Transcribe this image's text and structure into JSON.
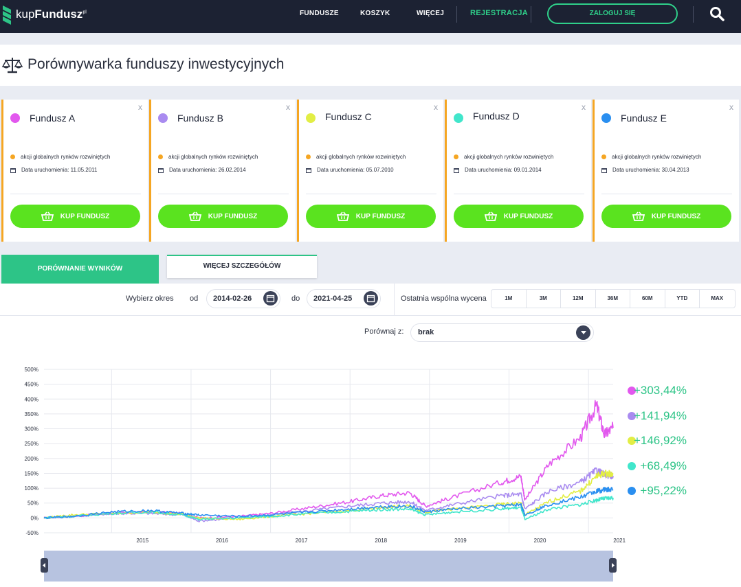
{
  "brand": {
    "name_light": "kup",
    "name_bold": "Fundusz",
    "suffix": "pl"
  },
  "nav": {
    "items": [
      "FUNDUSZE",
      "KOSZYK",
      "WIĘCEJ"
    ],
    "register": "REJESTRACJA",
    "login": "ZALOGUJ SIĘ"
  },
  "page": {
    "title": "Porównywarka funduszy inwestycyjnych"
  },
  "cards": [
    {
      "name": "Fundusz A",
      "color": "#e258ee",
      "category": "akcji globalnych rynków rozwiniętych",
      "date": "Data uruchomienia: 11.05.2011",
      "buy": "KUP FUNDUSZ"
    },
    {
      "name": "Fundusz B",
      "color": "#a98bf0",
      "category": "akcji globalnych rynków rozwiniętych",
      "date": "Data uruchomienia: 26.02.2014",
      "buy": "KUP FUNDUSZ"
    },
    {
      "name": "Fundusz C",
      "color": "#e2ee45",
      "category": "akcji globalnych rynków rozwiniętych",
      "date": "Data uruchomienia: 05.07.2010",
      "buy": "KUP FUNDUSZ"
    },
    {
      "name": "Fundusz D",
      "color": "#41e6cb",
      "category": "akcji globalnych rynków rozwiniętych",
      "date": "Data uruchomienia: 09.01.2014",
      "buy": "KUP FUNDUSZ"
    },
    {
      "name": "Fundusz E",
      "color": "#2a8ff0",
      "category": "akcji globalnych rynków rozwiniętych",
      "date": "Data uruchomienia: 30.04.2013",
      "buy": "KUP FUNDUSZ"
    }
  ],
  "card_close": "x",
  "tabs": {
    "results": "PORÓWNANIE WYNIKÓW",
    "details": "WIĘCEJ SZCZEGÓŁÓW"
  },
  "filters": {
    "period_label": "Wybierz okres",
    "from_label": "od",
    "from_value": "2014-02-26",
    "to_label": "do",
    "to_value": "2021-04-25",
    "last_label": "Ostatnia wspólna wycena",
    "ranges": [
      "1M",
      "3M",
      "12M",
      "36M",
      "60M",
      "YTD",
      "MAX"
    ],
    "compare_label": "Porównaj z:",
    "compare_value": "brak"
  },
  "chart_data": {
    "type": "line",
    "x_ticks": [
      "2015",
      "2016",
      "2017",
      "2018",
      "2019",
      "2020",
      "2021"
    ],
    "y_ticks": [
      "500%",
      "450%",
      "400%",
      "350%",
      "300%",
      "250%",
      "200%",
      "150%",
      "100%",
      "50%",
      "0%",
      "-50%"
    ],
    "ylim": [
      -50,
      500
    ],
    "grid": true,
    "legend_position": "right",
    "series": [
      {
        "color": "#e258ee",
        "final_label": "+303,44%",
        "x": [
          2014.15,
          2014.5,
          2015.0,
          2015.5,
          2015.9,
          2016.1,
          2016.6,
          2017.0,
          2017.5,
          2018.0,
          2018.4,
          2018.75,
          2018.95,
          2019.3,
          2019.9,
          2020.15,
          2020.2,
          2020.5,
          2020.9,
          2021.1,
          2021.2,
          2021.31
        ],
        "y": [
          0,
          5,
          15,
          20,
          15,
          0,
          5,
          15,
          35,
          55,
          75,
          85,
          40,
          70,
          120,
          140,
          60,
          180,
          270,
          380,
          280,
          303
        ]
      },
      {
        "color": "#a98bf0",
        "final_label": "+141,94%",
        "x": [
          2014.15,
          2014.5,
          2015.0,
          2015.5,
          2015.9,
          2016.1,
          2016.6,
          2017.0,
          2017.5,
          2018.0,
          2018.4,
          2018.75,
          2018.95,
          2019.3,
          2019.9,
          2020.15,
          2020.2,
          2020.5,
          2020.9,
          2021.1,
          2021.2,
          2021.31
        ],
        "y": [
          0,
          5,
          15,
          15,
          10,
          -10,
          0,
          10,
          25,
          40,
          50,
          55,
          25,
          45,
          75,
          80,
          30,
          90,
          120,
          160,
          145,
          142
        ]
      },
      {
        "color": "#e2ee45",
        "final_label": "+146,92%",
        "x": [
          2014.15,
          2014.5,
          2015.0,
          2015.5,
          2015.9,
          2016.1,
          2016.6,
          2017.0,
          2017.5,
          2018.0,
          2018.4,
          2018.75,
          2018.95,
          2019.3,
          2019.9,
          2020.15,
          2020.2,
          2020.5,
          2020.9,
          2021.1,
          2021.2,
          2021.31
        ],
        "y": [
          0,
          10,
          15,
          20,
          12,
          0,
          -5,
          5,
          15,
          25,
          35,
          40,
          20,
          30,
          45,
          50,
          10,
          55,
          90,
          140,
          150,
          147
        ]
      },
      {
        "color": "#41e6cb",
        "final_label": "+68,49%",
        "x": [
          2014.15,
          2014.5,
          2015.0,
          2015.5,
          2015.9,
          2016.1,
          2016.6,
          2017.0,
          2017.5,
          2018.0,
          2018.4,
          2018.75,
          2018.95,
          2019.3,
          2019.9,
          2020.15,
          2020.2,
          2020.5,
          2020.9,
          2021.1,
          2021.2,
          2021.31
        ],
        "y": [
          0,
          5,
          15,
          20,
          10,
          -5,
          0,
          5,
          15,
          22,
          28,
          30,
          10,
          20,
          30,
          35,
          -5,
          30,
          45,
          60,
          65,
          68
        ]
      },
      {
        "color": "#2a8ff0",
        "final_label": "+95,22%",
        "x": [
          2014.15,
          2014.5,
          2015.0,
          2015.5,
          2015.9,
          2016.1,
          2016.6,
          2017.0,
          2017.5,
          2018.0,
          2018.4,
          2018.75,
          2018.95,
          2019.3,
          2019.9,
          2020.15,
          2020.2,
          2020.5,
          2020.9,
          2021.1,
          2021.2,
          2021.31
        ],
        "y": [
          0,
          5,
          20,
          25,
          15,
          10,
          5,
          10,
          20,
          30,
          38,
          40,
          20,
          30,
          40,
          45,
          10,
          45,
          70,
          90,
          95,
          95
        ]
      }
    ]
  }
}
